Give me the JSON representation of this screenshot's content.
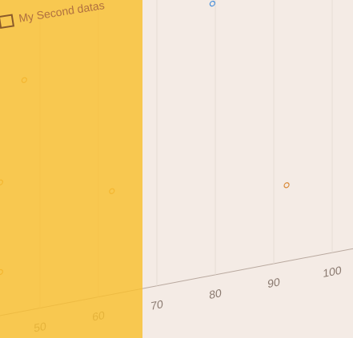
{
  "chart_data": {
    "type": "scatter",
    "series": [
      {
        "name": "My Second datas",
        "color": "#d98a3a",
        "x": [
          47.3,
          43.2,
          62.3,
          43.2,
          92.2
        ],
        "values": [
          85,
          49,
          38,
          16,
          28
        ]
      },
      {
        "color": "#4a90d9",
        "x": [
          79.5
        ],
        "values": [
          100
        ]
      }
    ],
    "xlim": [
      40,
      100
    ],
    "xticks": [
      50,
      60,
      70,
      80,
      90,
      100
    ],
    "ylim": [
      0,
      100
    ],
    "grid": true
  }
}
